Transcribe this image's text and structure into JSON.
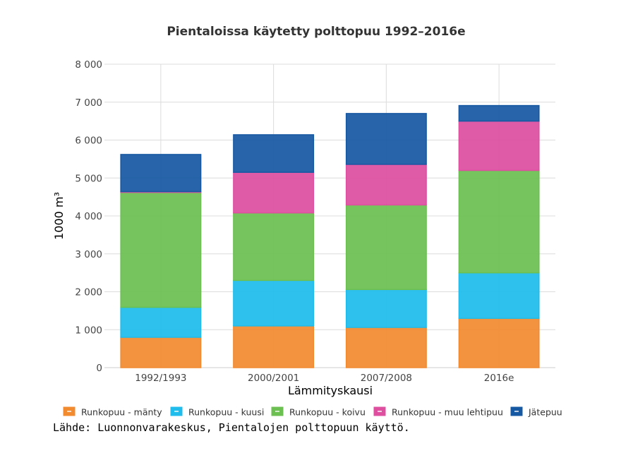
{
  "chart_data": {
    "type": "bar",
    "stacked": true,
    "title": "Pientaloissa käytetty polttopuu 1992–2016e",
    "xlabel": "Lämmityskausi",
    "ylabel": "1000 m³",
    "ylim": [
      0,
      8000
    ],
    "yticks": [
      0,
      1000,
      2000,
      3000,
      4000,
      5000,
      6000,
      7000,
      8000
    ],
    "ytick_labels": [
      "0",
      "1 000",
      "2 000",
      "3 000",
      "4 000",
      "5 000",
      "6 000",
      "7 000",
      "8 000"
    ],
    "grid": true,
    "legend_position": "bottom",
    "categories": [
      "1992/1993",
      "2000/2001",
      "2007/2008",
      "2016e"
    ],
    "series": [
      {
        "name": "Runkopuu - mänty",
        "color": "#f28a30",
        "values": [
          800,
          1100,
          1060,
          1300
        ]
      },
      {
        "name": "Runkopuu - kuusi",
        "color": "#1fbcec",
        "values": [
          790,
          1200,
          1000,
          1200
        ]
      },
      {
        "name": "Runkopuu - koivu",
        "color": "#6cc052",
        "values": [
          3030,
          1780,
          2230,
          2700
        ]
      },
      {
        "name": "Runkopuu - muu lehtipuu",
        "color": "#de4fa0",
        "values": [
          20,
          1070,
          1070,
          1300
        ]
      },
      {
        "name": "Jätepuu",
        "color": "#1758a3",
        "values": [
          980,
          990,
          1340,
          410
        ]
      }
    ]
  },
  "source": "Lähde: Luonnonvarakeskus, Pientalojen polttopuun käyttö."
}
